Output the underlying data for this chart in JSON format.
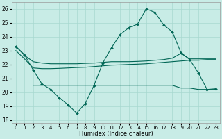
{
  "xlabel": "Humidex (Indice chaleur)",
  "bg_color": "#c8ece6",
  "grid_color": "#a8d8d0",
  "line_color": "#006655",
  "xlim": [
    -0.5,
    23.5
  ],
  "ylim": [
    17.8,
    26.5
  ],
  "yticks": [
    18,
    19,
    20,
    21,
    22,
    23,
    24,
    25,
    26
  ],
  "xticks": [
    0,
    1,
    2,
    3,
    4,
    5,
    6,
    7,
    8,
    9,
    10,
    11,
    12,
    13,
    14,
    15,
    16,
    17,
    18,
    19,
    20,
    21,
    22,
    23
  ],
  "line_main_x": [
    0,
    1,
    2,
    3,
    4,
    5,
    6,
    7,
    8,
    9,
    10,
    11,
    12,
    13,
    14,
    15,
    16,
    17,
    18,
    19,
    20,
    21,
    22,
    23
  ],
  "line_main_y": [
    23.3,
    22.7,
    21.6,
    20.6,
    20.2,
    19.6,
    19.1,
    18.5,
    19.2,
    20.5,
    22.1,
    23.2,
    24.15,
    24.65,
    24.9,
    26.0,
    25.75,
    24.85,
    24.35,
    22.85,
    22.35,
    21.4,
    20.2,
    20.25
  ],
  "line_top_x": [
    0,
    1,
    2,
    3,
    4,
    5,
    6,
    7,
    8,
    9,
    10,
    11,
    12,
    13,
    14,
    15,
    16,
    17,
    18,
    19,
    20,
    21,
    22,
    23
  ],
  "line_top_y": [
    23.3,
    22.65,
    22.2,
    22.1,
    22.05,
    22.05,
    22.05,
    22.05,
    22.08,
    22.1,
    22.15,
    22.2,
    22.2,
    22.2,
    22.22,
    22.25,
    22.3,
    22.35,
    22.45,
    22.8,
    22.4,
    22.4,
    22.4,
    22.4
  ],
  "line_mid_x": [
    0,
    1,
    2,
    3,
    4,
    5,
    6,
    7,
    8,
    9,
    10,
    11,
    12,
    13,
    14,
    15,
    16,
    17,
    18,
    19,
    20,
    21,
    22,
    23
  ],
  "line_mid_y": [
    23.0,
    22.4,
    21.75,
    21.7,
    21.7,
    21.72,
    21.75,
    21.78,
    21.8,
    21.85,
    21.9,
    21.95,
    21.97,
    22.0,
    22.02,
    22.05,
    22.1,
    22.15,
    22.2,
    22.25,
    22.3,
    22.3,
    22.35,
    22.35
  ],
  "line_bot_x": [
    2,
    3,
    4,
    5,
    6,
    7,
    8,
    9,
    10,
    11,
    12,
    13,
    14,
    15,
    16,
    17,
    18,
    19,
    20,
    21,
    22,
    23
  ],
  "line_bot_y": [
    20.5,
    20.5,
    20.5,
    20.5,
    20.5,
    20.5,
    20.5,
    20.5,
    20.5,
    20.5,
    20.5,
    20.5,
    20.5,
    20.5,
    20.5,
    20.5,
    20.5,
    20.3,
    20.3,
    20.2,
    20.2,
    20.2
  ]
}
